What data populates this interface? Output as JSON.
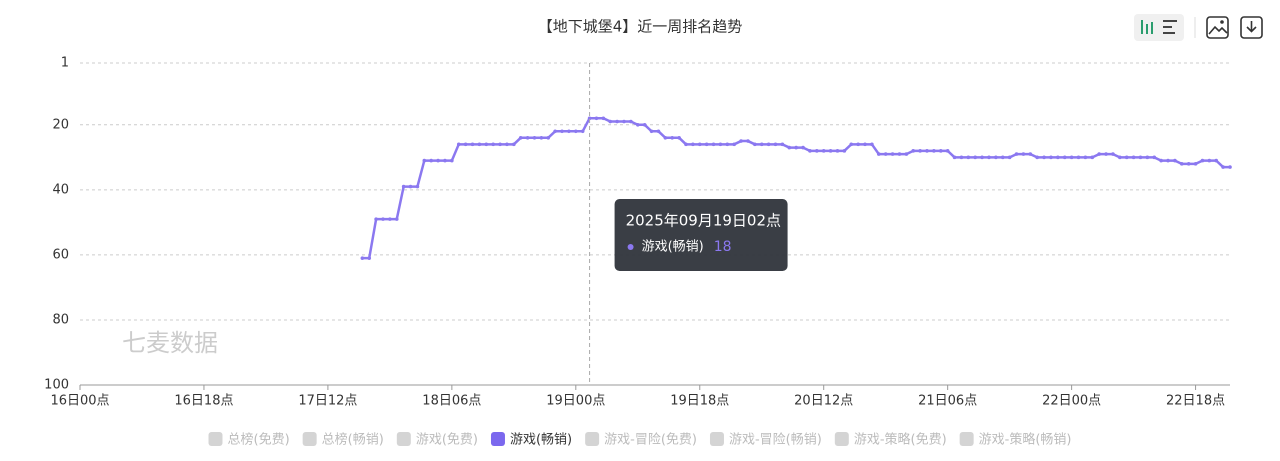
{
  "chart_data": {
    "type": "line",
    "title": "【地下城堡4】近一周排名趋势",
    "watermark": "七麦数据",
    "x": [
      41,
      42,
      43,
      44,
      45,
      46,
      47,
      48,
      49,
      50,
      51,
      52,
      53,
      54,
      55,
      56,
      57,
      58,
      59,
      60,
      61,
      62,
      63,
      64,
      65,
      66,
      67,
      68,
      69,
      70,
      71,
      72,
      73,
      74,
      75,
      76,
      77,
      78,
      79,
      80,
      81,
      82,
      83,
      84,
      85,
      86,
      87,
      88,
      89,
      90,
      91,
      92,
      93,
      94,
      95,
      96,
      97,
      98,
      99,
      100,
      101,
      102,
      103,
      104,
      105,
      106,
      107,
      108,
      109,
      110,
      111,
      112,
      113,
      114,
      115,
      116,
      117,
      118,
      119,
      120,
      121,
      122,
      123,
      124,
      125,
      126,
      127,
      128,
      129,
      130,
      131,
      132,
      133,
      134,
      135,
      136,
      137,
      138,
      139,
      140,
      141,
      142,
      143,
      144,
      145,
      146,
      147,
      148,
      149,
      150,
      151,
      152,
      153,
      154,
      155,
      156,
      157,
      158,
      159,
      160,
      161,
      162,
      163,
      164,
      165,
      166,
      167
    ],
    "xlim": [
      0,
      167
    ],
    "xticks": [
      {
        "value": 0,
        "label": "16日00点"
      },
      {
        "value": 18,
        "label": "16日18点"
      },
      {
        "value": 36,
        "label": "17日12点"
      },
      {
        "value": 54,
        "label": "18日06点"
      },
      {
        "value": 72,
        "label": "19日00点"
      },
      {
        "value": 90,
        "label": "19日18点"
      },
      {
        "value": 108,
        "label": "20日12点"
      },
      {
        "value": 126,
        "label": "21日06点"
      },
      {
        "value": 144,
        "label": "22日00点"
      },
      {
        "value": 162,
        "label": "22日18点"
      }
    ],
    "ylim": [
      1,
      100
    ],
    "y_inverted": true,
    "yticks": [
      1,
      20,
      40,
      60,
      80,
      100
    ],
    "grid": true,
    "series": [
      {
        "name": "总榜(免费)",
        "color": "#cccccc",
        "hidden": true
      },
      {
        "name": "总榜(畅销)",
        "color": "#cccccc",
        "hidden": true
      },
      {
        "name": "游戏(免费)",
        "color": "#cccccc",
        "hidden": true
      },
      {
        "name": "游戏(畅销)",
        "color": "#8b78f0",
        "values": [
          61,
          61,
          49,
          49,
          49,
          49,
          39,
          39,
          39,
          31,
          31,
          31,
          31,
          31,
          26,
          26,
          26,
          26,
          26,
          26,
          26,
          26,
          26,
          24,
          24,
          24,
          24,
          24,
          22,
          22,
          22,
          22,
          22,
          18,
          18,
          18,
          19,
          19,
          19,
          19,
          20,
          20,
          22,
          22,
          24,
          24,
          24,
          26,
          26,
          26,
          26,
          26,
          26,
          26,
          26,
          25,
          25,
          26,
          26,
          26,
          26,
          26,
          27,
          27,
          27,
          28,
          28,
          28,
          28,
          28,
          28,
          26,
          26,
          26,
          26,
          29,
          29,
          29,
          29,
          29,
          28,
          28,
          28,
          28,
          28,
          28,
          30,
          30,
          30,
          30,
          30,
          30,
          30,
          30,
          30,
          29,
          29,
          29,
          30,
          30,
          30,
          30,
          30,
          30,
          30,
          30,
          30,
          29,
          29,
          29,
          30,
          30,
          30,
          30,
          30,
          30,
          31,
          31,
          31,
          32,
          32,
          32,
          31,
          31,
          31,
          33,
          33
        ]
      },
      {
        "name": "游戏-冒险(免费)",
        "color": "#cccccc",
        "hidden": true
      },
      {
        "name": "游戏-冒险(畅销)",
        "color": "#cccccc",
        "hidden": true
      },
      {
        "name": "游戏-策略(免费)",
        "color": "#cccccc",
        "hidden": true
      },
      {
        "name": "游戏-策略(畅销)",
        "color": "#cccccc",
        "hidden": true
      }
    ],
    "tooltip": {
      "title": "2025年09月19日02点",
      "series": 3,
      "index": 33
    }
  }
}
